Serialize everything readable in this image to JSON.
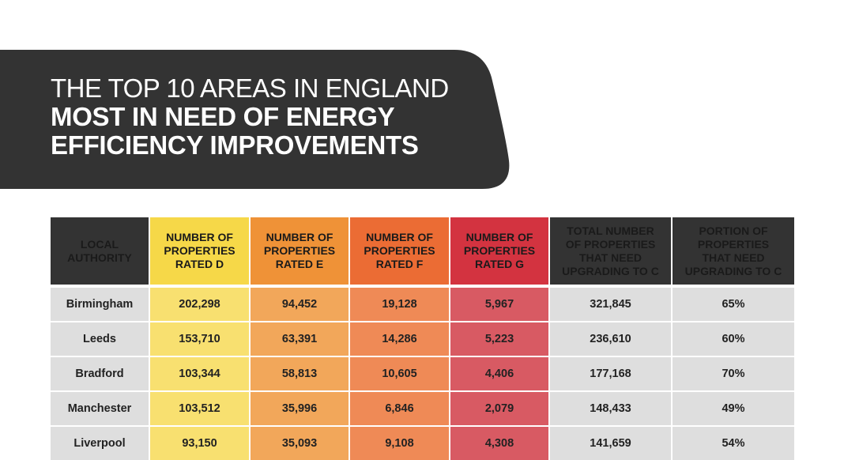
{
  "title": {
    "line1": "THE TOP 10 AREAS IN ENGLAND",
    "line2": "MOST IN NEED OF ENERGY",
    "line3": "EFFICIENCY IMPROVEMENTS"
  },
  "colors": {
    "banner": "#333333",
    "header_dark": "#333333",
    "rated_d": "#f6d848",
    "rated_e": "#ef9237",
    "rated_f": "#eb6c34",
    "rated_g": "#d33340"
  },
  "table": {
    "headers": {
      "authority": [
        "LOCAL",
        "AUTHORITY"
      ],
      "rated_d": [
        "NUMBER OF",
        "PROPERTIES",
        "RATED D"
      ],
      "rated_e": [
        "NUMBER OF",
        "PROPERTIES",
        "RATED E"
      ],
      "rated_f": [
        "NUMBER OF",
        "PROPERTIES",
        "RATED F"
      ],
      "rated_g": [
        "NUMBER OF",
        "PROPERTIES",
        "RATED G"
      ],
      "total": [
        "TOTAL NUMBER",
        "OF PROPERTIES",
        "THAT NEED",
        "UPGRADING TO C"
      ],
      "portion": [
        "PORTION OF",
        "PROPERTIES",
        "THAT NEED",
        "UPGRADING TO C"
      ]
    },
    "rows": [
      {
        "authority": "Birmingham",
        "d": "202,298",
        "e": "94,452",
        "f": "19,128",
        "g": "5,967",
        "total": "321,845",
        "portion": "65%"
      },
      {
        "authority": "Leeds",
        "d": "153,710",
        "e": "63,391",
        "f": "14,286",
        "g": "5,223",
        "total": "236,610",
        "portion": "60%"
      },
      {
        "authority": "Bradford",
        "d": "103,344",
        "e": "58,813",
        "f": "10,605",
        "g": "4,406",
        "total": "177,168",
        "portion": "70%"
      },
      {
        "authority": "Manchester",
        "d": "103,512",
        "e": "35,996",
        "f": "6,846",
        "g": "2,079",
        "total": "148,433",
        "portion": "49%"
      },
      {
        "authority": "Liverpool",
        "d": "93,150",
        "e": "35,093",
        "f": "9,108",
        "g": "4,308",
        "total": "141,659",
        "portion": "54%"
      }
    ]
  }
}
